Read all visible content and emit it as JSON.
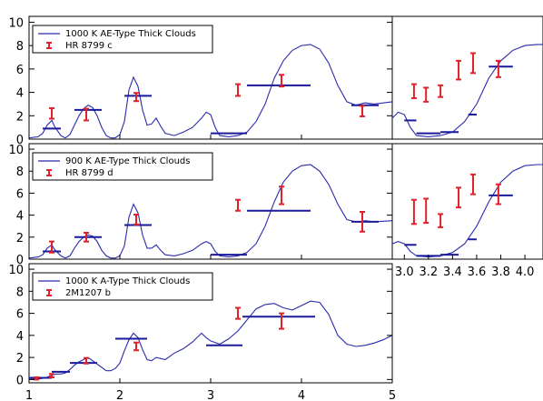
{
  "chart_data": [
    {
      "panel": "HR 8799 c",
      "type": "line",
      "xlim": [
        1.0,
        5.0
      ],
      "ylim": [
        0,
        10.5
      ],
      "yticks": [
        0,
        2,
        4,
        6,
        8,
        10
      ],
      "xticks": [
        1,
        2,
        3,
        4,
        5
      ],
      "legend": {
        "position": "top-left",
        "model": "1000 K AE-Type Thick Clouds",
        "observed": "HR 8799 c"
      },
      "colors": {
        "model": "#2b2bab",
        "band": "#1a1a9a",
        "observed": "#e0202a"
      },
      "model_spectrum": {
        "x": [
          1.0,
          1.1,
          1.15,
          1.2,
          1.25,
          1.28,
          1.35,
          1.4,
          1.45,
          1.5,
          1.55,
          1.6,
          1.65,
          1.7,
          1.75,
          1.8,
          1.85,
          1.9,
          1.95,
          2.0,
          2.05,
          2.1,
          2.15,
          2.2,
          2.25,
          2.3,
          2.35,
          2.4,
          2.45,
          2.5,
          2.6,
          2.7,
          2.8,
          2.9,
          2.95,
          3.0,
          3.05,
          3.1,
          3.2,
          3.3,
          3.4,
          3.5,
          3.6,
          3.7,
          3.8,
          3.9,
          4.0,
          4.1,
          4.2,
          4.3,
          4.4,
          4.5,
          4.6,
          4.65,
          4.7,
          4.8,
          5.0
        ],
        "y": [
          0.1,
          0.2,
          0.5,
          1.2,
          1.6,
          1.1,
          0.3,
          0.1,
          0.4,
          1.2,
          2.0,
          2.6,
          2.9,
          2.7,
          2.0,
          1.0,
          0.3,
          0.1,
          0.1,
          0.4,
          1.5,
          4.2,
          5.3,
          4.5,
          2.5,
          1.2,
          1.3,
          1.8,
          1.1,
          0.5,
          0.3,
          0.6,
          1.0,
          1.8,
          2.3,
          2.1,
          1.0,
          0.3,
          0.2,
          0.3,
          0.6,
          1.5,
          3.0,
          5.2,
          6.7,
          7.6,
          8.0,
          8.1,
          7.7,
          6.5,
          4.6,
          3.2,
          2.9,
          3.0,
          3.1,
          3.0,
          3.2
        ]
      },
      "model_bands": [
        {
          "x0": 1.15,
          "x1": 1.35,
          "y": 0.9
        },
        {
          "x0": 1.5,
          "x1": 1.8,
          "y": 2.5
        },
        {
          "x0": 2.05,
          "x1": 2.35,
          "y": 3.7
        },
        {
          "x0": 3.0,
          "x1": 3.4,
          "y": 0.5
        },
        {
          "x0": 3.4,
          "x1": 4.1,
          "y": 4.6
        },
        {
          "x0": 4.55,
          "x1": 4.85,
          "y": 2.9
        }
      ],
      "observed": [
        {
          "x": 1.25,
          "y": 2.2,
          "err": 0.45
        },
        {
          "x": 1.63,
          "y": 2.1,
          "err": 0.5
        },
        {
          "x": 2.18,
          "y": 3.6,
          "err": 0.35
        },
        {
          "x": 3.3,
          "y": 4.2,
          "err": 0.5
        },
        {
          "x": 3.78,
          "y": 5.0,
          "err": 0.5
        },
        {
          "x": 4.67,
          "y": 2.4,
          "err": 0.45
        }
      ]
    },
    {
      "panel": "HR 8799 c inset",
      "type": "line",
      "xlim": [
        2.9,
        4.15
      ],
      "ylim": [
        0,
        10.5
      ],
      "model_spectrum": {
        "x": [
          2.9,
          2.95,
          3.0,
          3.05,
          3.1,
          3.2,
          3.3,
          3.4,
          3.5,
          3.6,
          3.7,
          3.8,
          3.9,
          4.0,
          4.1,
          4.15
        ],
        "y": [
          1.8,
          2.3,
          2.1,
          1.0,
          0.3,
          0.2,
          0.3,
          0.6,
          1.5,
          3.0,
          5.2,
          6.7,
          7.6,
          8.0,
          8.1,
          8.1
        ]
      },
      "model_bands": [
        {
          "x0": 3.0,
          "x1": 3.1,
          "y": 1.6
        },
        {
          "x0": 3.1,
          "x1": 3.3,
          "y": 0.5
        },
        {
          "x0": 3.3,
          "x1": 3.45,
          "y": 0.6
        },
        {
          "x0": 3.53,
          "x1": 3.6,
          "y": 2.1
        },
        {
          "x0": 3.7,
          "x1": 3.9,
          "y": 6.2
        }
      ],
      "observed": [
        {
          "x": 3.08,
          "y": 4.1,
          "err": 0.6
        },
        {
          "x": 3.18,
          "y": 3.8,
          "err": 0.6
        },
        {
          "x": 3.3,
          "y": 4.1,
          "err": 0.5
        },
        {
          "x": 3.45,
          "y": 5.9,
          "err": 0.8
        },
        {
          "x": 3.57,
          "y": 6.5,
          "err": 0.85
        },
        {
          "x": 3.78,
          "y": 6.0,
          "err": 0.7
        }
      ]
    },
    {
      "panel": "HR 8799 d",
      "type": "line",
      "xlim": [
        1.0,
        5.0
      ],
      "ylim": [
        0,
        10.5
      ],
      "yticks": [
        0,
        2,
        4,
        6,
        8,
        10
      ],
      "xticks": [
        1,
        2,
        3,
        4,
        5
      ],
      "legend": {
        "position": "top-left",
        "model": "900 K AE-Type Thick Clouds",
        "observed": "HR 8799 d"
      },
      "model_spectrum": {
        "x": [
          1.0,
          1.1,
          1.15,
          1.2,
          1.25,
          1.28,
          1.35,
          1.4,
          1.45,
          1.5,
          1.55,
          1.6,
          1.65,
          1.7,
          1.75,
          1.8,
          1.85,
          1.9,
          1.95,
          2.0,
          2.05,
          2.1,
          2.15,
          2.2,
          2.25,
          2.3,
          2.35,
          2.4,
          2.45,
          2.5,
          2.6,
          2.7,
          2.8,
          2.9,
          2.95,
          3.0,
          3.05,
          3.1,
          3.2,
          3.3,
          3.4,
          3.5,
          3.6,
          3.7,
          3.8,
          3.9,
          4.0,
          4.1,
          4.2,
          4.3,
          4.4,
          4.5,
          4.6,
          4.65,
          4.7,
          4.8,
          5.0
        ],
        "y": [
          0.1,
          0.2,
          0.4,
          1.0,
          1.3,
          0.9,
          0.3,
          0.1,
          0.3,
          1.0,
          1.6,
          2.0,
          2.2,
          2.1,
          1.6,
          0.8,
          0.3,
          0.1,
          0.1,
          0.3,
          1.2,
          3.8,
          5.0,
          4.2,
          2.2,
          1.0,
          1.0,
          1.3,
          0.8,
          0.4,
          0.3,
          0.5,
          0.8,
          1.4,
          1.6,
          1.4,
          0.7,
          0.3,
          0.2,
          0.3,
          0.6,
          1.4,
          3.0,
          5.2,
          7.0,
          8.0,
          8.5,
          8.6,
          8.0,
          6.8,
          5.0,
          3.6,
          3.4,
          3.4,
          3.5,
          3.4,
          3.5
        ]
      },
      "model_bands": [
        {
          "x0": 1.15,
          "x1": 1.35,
          "y": 0.7
        },
        {
          "x0": 1.5,
          "x1": 1.8,
          "y": 2.0
        },
        {
          "x0": 2.05,
          "x1": 2.35,
          "y": 3.1
        },
        {
          "x0": 3.0,
          "x1": 3.4,
          "y": 0.4
        },
        {
          "x0": 3.4,
          "x1": 4.1,
          "y": 4.4
        },
        {
          "x0": 4.55,
          "x1": 4.85,
          "y": 3.4
        }
      ],
      "observed": [
        {
          "x": 1.25,
          "y": 1.1,
          "err": 0.5
        },
        {
          "x": 1.63,
          "y": 2.0,
          "err": 0.4
        },
        {
          "x": 2.18,
          "y": 3.6,
          "err": 0.45
        },
        {
          "x": 3.3,
          "y": 4.9,
          "err": 0.5
        },
        {
          "x": 3.78,
          "y": 5.8,
          "err": 0.8
        },
        {
          "x": 4.67,
          "y": 3.4,
          "err": 0.9
        }
      ]
    },
    {
      "panel": "HR 8799 d inset",
      "type": "line",
      "xlim": [
        2.9,
        4.15
      ],
      "ylim": [
        0,
        10.5
      ],
      "xticks": [
        3.0,
        3.2,
        3.4,
        3.6,
        3.8,
        4.0
      ],
      "model_spectrum": {
        "x": [
          2.9,
          2.95,
          3.0,
          3.05,
          3.1,
          3.2,
          3.3,
          3.4,
          3.5,
          3.6,
          3.7,
          3.8,
          3.9,
          4.0,
          4.1,
          4.15
        ],
        "y": [
          1.4,
          1.6,
          1.4,
          0.7,
          0.3,
          0.2,
          0.3,
          0.6,
          1.4,
          3.0,
          5.2,
          7.0,
          8.0,
          8.5,
          8.6,
          8.6
        ]
      },
      "model_bands": [
        {
          "x0": 3.0,
          "x1": 3.1,
          "y": 1.3
        },
        {
          "x0": 3.1,
          "x1": 3.3,
          "y": 0.3
        },
        {
          "x0": 3.3,
          "x1": 3.45,
          "y": 0.4
        },
        {
          "x0": 3.53,
          "x1": 3.6,
          "y": 1.8
        },
        {
          "x0": 3.7,
          "x1": 3.9,
          "y": 5.8
        }
      ],
      "observed": [
        {
          "x": 3.08,
          "y": 4.3,
          "err": 1.1
        },
        {
          "x": 3.18,
          "y": 4.4,
          "err": 1.1
        },
        {
          "x": 3.3,
          "y": 3.5,
          "err": 0.6
        },
        {
          "x": 3.45,
          "y": 5.6,
          "err": 0.9
        },
        {
          "x": 3.57,
          "y": 6.8,
          "err": 0.9
        },
        {
          "x": 3.78,
          "y": 5.9,
          "err": 0.9
        }
      ]
    },
    {
      "panel": "2M1207 b",
      "type": "line",
      "xlim": [
        1.0,
        5.0
      ],
      "ylim": [
        -0.3,
        10.5
      ],
      "yticks": [
        0,
        2,
        4,
        6,
        8,
        10
      ],
      "xticks": [
        1,
        2,
        3,
        4,
        5
      ],
      "legend": {
        "position": "top-left",
        "model": "1000 K A-Type Thick Clouds",
        "observed": "2M1207 b"
      },
      "model_spectrum": {
        "x": [
          1.0,
          1.1,
          1.15,
          1.2,
          1.25,
          1.3,
          1.35,
          1.4,
          1.45,
          1.5,
          1.55,
          1.6,
          1.65,
          1.7,
          1.75,
          1.8,
          1.85,
          1.9,
          1.95,
          2.0,
          2.05,
          2.1,
          2.15,
          2.2,
          2.25,
          2.3,
          2.35,
          2.4,
          2.5,
          2.6,
          2.7,
          2.8,
          2.9,
          2.95,
          3.0,
          3.1,
          3.2,
          3.3,
          3.4,
          3.5,
          3.6,
          3.7,
          3.8,
          3.9,
          4.0,
          4.1,
          4.2,
          4.3,
          4.4,
          4.5,
          4.6,
          4.7,
          4.8,
          4.9,
          5.0
        ],
        "y": [
          0.0,
          0.05,
          0.1,
          0.2,
          0.4,
          0.5,
          0.5,
          0.6,
          0.9,
          1.3,
          1.6,
          1.8,
          2.0,
          1.7,
          1.4,
          1.1,
          0.8,
          0.8,
          1.0,
          1.5,
          2.6,
          3.6,
          4.2,
          3.8,
          2.7,
          1.8,
          1.7,
          2.0,
          1.8,
          2.4,
          2.8,
          3.4,
          4.2,
          3.8,
          3.5,
          3.2,
          3.7,
          4.4,
          5.4,
          6.4,
          6.8,
          6.9,
          6.5,
          6.3,
          6.7,
          7.1,
          7.0,
          5.9,
          4.0,
          3.2,
          3.0,
          3.1,
          3.3,
          3.6,
          4.0
        ]
      },
      "model_bands": [
        {
          "x0": 1.0,
          "x1": 1.25,
          "y": 0.15
        },
        {
          "x0": 1.25,
          "x1": 1.45,
          "y": 0.7
        },
        {
          "x0": 1.45,
          "x1": 1.75,
          "y": 1.5
        },
        {
          "x0": 1.95,
          "x1": 2.3,
          "y": 3.7
        },
        {
          "x0": 2.95,
          "x1": 3.35,
          "y": 3.1
        },
        {
          "x0": 3.35,
          "x1": 4.15,
          "y": 5.7
        }
      ],
      "observed": [
        {
          "x": 1.08,
          "y": 0.1,
          "err": 0.1
        },
        {
          "x": 1.25,
          "y": 0.35,
          "err": 0.15
        },
        {
          "x": 1.63,
          "y": 1.7,
          "err": 0.25
        },
        {
          "x": 2.18,
          "y": 3.0,
          "err": 0.35
        },
        {
          "x": 3.3,
          "y": 6.0,
          "err": 0.5
        },
        {
          "x": 3.78,
          "y": 5.3,
          "err": 0.7
        }
      ]
    }
  ]
}
